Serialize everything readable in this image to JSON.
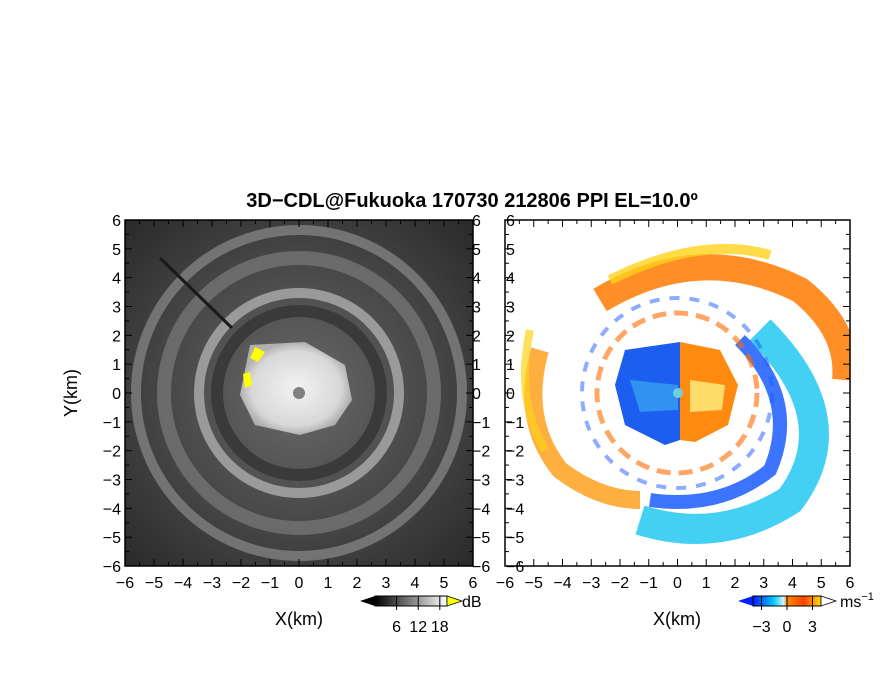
{
  "figure": {
    "title": "3D−CDL@Fukuoka 170730 212806 PPI EL=10.0º"
  },
  "chart_data": [
    {
      "type": "heatmap",
      "name": "reflectivity-panel",
      "xlabel": "X(km)",
      "ylabel": "Y(km)",
      "xlim": [
        -6,
        6
      ],
      "ylim": [
        -6,
        6
      ],
      "xticks": [
        "−6",
        "−5",
        "−4",
        "−3",
        "−2",
        "−1",
        "0",
        "1",
        "2",
        "3",
        "4",
        "5",
        "6"
      ],
      "yticks": [
        "6",
        "5",
        "4",
        "3",
        "2",
        "1",
        "0",
        "−1",
        "−2",
        "−3",
        "−4",
        "−5",
        "−6"
      ],
      "colormap": "grayscale",
      "colorbar": {
        "unit": "dB",
        "ticks": [
          "6",
          "12",
          "18"
        ],
        "range": [
          0,
          20
        ]
      }
    },
    {
      "type": "heatmap",
      "name": "velocity-panel",
      "xlabel": "X(km)",
      "xlim": [
        -6,
        6
      ],
      "ylim": [
        -6,
        6
      ],
      "xticks": [
        "−6",
        "−5",
        "−4",
        "−3",
        "−2",
        "−1",
        "0",
        "1",
        "2",
        "3",
        "4",
        "5",
        "6"
      ],
      "yticks": [
        "6",
        "5",
        "4",
        "3",
        "2",
        "1",
        "0",
        "−1",
        "−2",
        "−3",
        "−4",
        "−5",
        "−6"
      ],
      "colormap": "diverging blue-white-red",
      "colors": {
        "negative": "#1040e0",
        "near_zero": "#e6f6ff",
        "positive": "#ff6a00",
        "extreme_positive": "#d01010"
      },
      "colorbar": {
        "unit": "ms",
        "unit_exponent": "−1",
        "ticks": [
          "−3",
          "0",
          "3"
        ],
        "range": [
          -4,
          4
        ]
      }
    }
  ]
}
